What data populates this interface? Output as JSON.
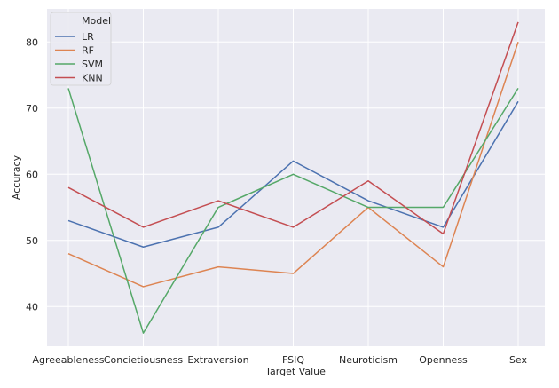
{
  "chart_data": {
    "type": "line",
    "title": "",
    "xlabel": "Target Value",
    "ylabel": "Accuracy",
    "categories": [
      "Agreeableness",
      "Concietiousness",
      "Extraversion",
      "FSIQ",
      "Neuroticism",
      "Openness",
      "Sex"
    ],
    "ylim": [
      34,
      85
    ],
    "yticks": [
      40,
      50,
      60,
      70,
      80
    ],
    "grid": true,
    "legend": {
      "title": "Model",
      "placement": "top-left"
    },
    "series": [
      {
        "name": "LR",
        "color": "#4c72b0",
        "values": [
          53,
          49,
          52,
          62,
          56,
          52,
          71
        ]
      },
      {
        "name": "RF",
        "color": "#dd8452",
        "values": [
          48,
          43,
          46,
          45,
          55,
          46,
          80
        ]
      },
      {
        "name": "SVM",
        "color": "#55a868",
        "values": [
          73,
          36,
          55,
          60,
          55,
          55,
          73
        ]
      },
      {
        "name": "KNN",
        "color": "#c44e52",
        "values": [
          58,
          52,
          56,
          52,
          59,
          51,
          83
        ]
      }
    ]
  }
}
